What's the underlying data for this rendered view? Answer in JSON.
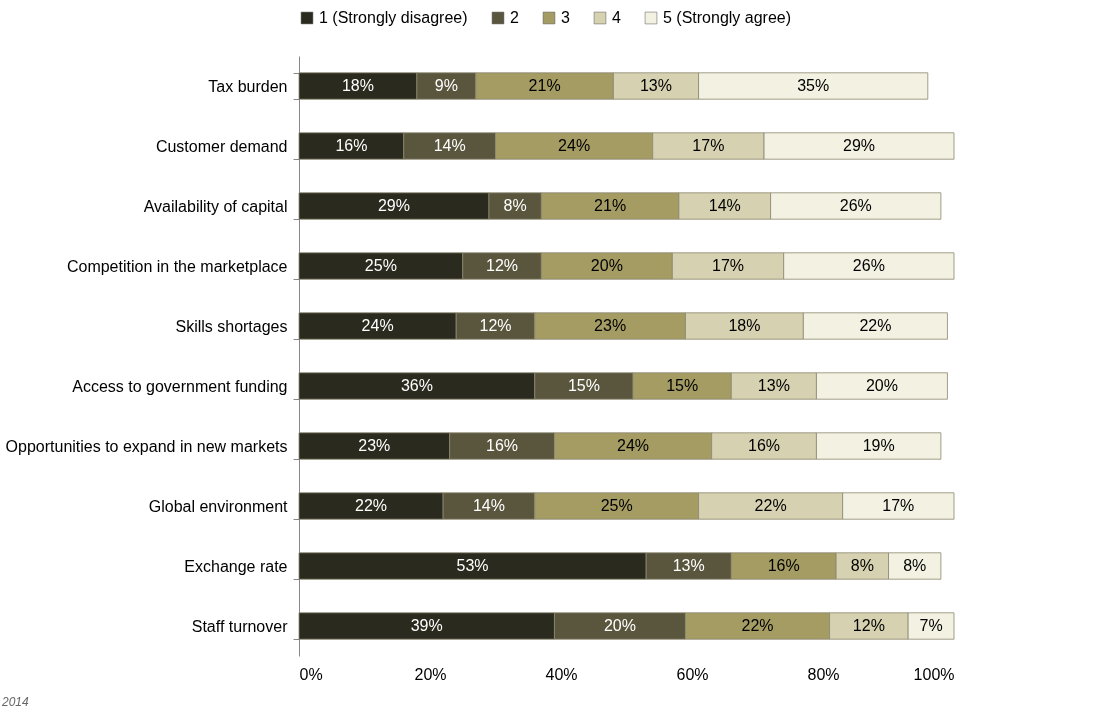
{
  "chart_data": {
    "type": "bar",
    "orientation": "horizontal",
    "stacked": true,
    "legend": "top",
    "categories": [
      "Tax burden",
      "Customer demand",
      "Availability of capital",
      "Competition in the marketplace",
      "Skills shortages",
      "Access to government funding",
      "Opportunities to expand in new markets",
      "Global environment",
      "Exchange rate",
      "Staff turnover"
    ],
    "series": [
      {
        "name": "1 (Strongly disagree)",
        "color": "#2b2a1e",
        "values": [
          18,
          16,
          29,
          25,
          24,
          36,
          23,
          22,
          53,
          39
        ],
        "value_labels": [
          "18%",
          "16%",
          "29%",
          "25%",
          "24%",
          "36%",
          "23%",
          "22%",
          "53%",
          "39%"
        ]
      },
      {
        "name": "2",
        "color": "#5a563e",
        "values": [
          9,
          14,
          8,
          12,
          12,
          15,
          16,
          14,
          13,
          20
        ],
        "value_labels": [
          "9%",
          "14%",
          "8%",
          "12%",
          "12%",
          "15%",
          "16%",
          "14%",
          "13%",
          "20%"
        ]
      },
      {
        "name": "3",
        "color": "#a59c64",
        "values": [
          21,
          24,
          21,
          20,
          23,
          15,
          24,
          25,
          16,
          22
        ],
        "value_labels": [
          "21%",
          "24%",
          "21%",
          "20%",
          "23%",
          "15%",
          "24%",
          "25%",
          "16%",
          "22%"
        ]
      },
      {
        "name": "4",
        "color": "#d6d1b0",
        "values": [
          13,
          17,
          14,
          17,
          18,
          13,
          16,
          22,
          8,
          12
        ],
        "value_labels": [
          "13%",
          "17%",
          "14%",
          "17%",
          "18%",
          "13%",
          "16%",
          "22%",
          "8%",
          "12%"
        ]
      },
      {
        "name": "5 (Strongly agree)",
        "color": "#f3f1e2",
        "values": [
          35,
          29,
          26,
          26,
          22,
          20,
          19,
          17,
          8,
          7
        ],
        "value_labels": [
          "35%",
          "29%",
          "26%",
          "26%",
          "22%",
          "20%",
          "19%",
          "17%",
          "8%",
          "7%"
        ]
      }
    ],
    "xlim": [
      0,
      100
    ],
    "xticks": [
      {
        "value": 0,
        "label": "0%"
      },
      {
        "value": 20,
        "label": "20%"
      },
      {
        "value": 40,
        "label": "40%"
      },
      {
        "value": 60,
        "label": "60%"
      },
      {
        "value": 80,
        "label": "80%"
      },
      {
        "value": 100,
        "label": "100%"
      }
    ],
    "grid": false,
    "annotations": [
      "2014"
    ]
  }
}
